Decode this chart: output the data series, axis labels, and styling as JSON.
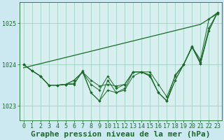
{
  "background_color": "#cce8f0",
  "plot_bg_color": "#d8eff0",
  "grid_color": "#99ccbb",
  "line_color": "#1a6b2a",
  "xlabel": "Graphe pression niveau de la mer (hPa)",
  "xlabel_fontsize": 8,
  "tick_fontsize": 6,
  "xlim": [
    -0.5,
    23.5
  ],
  "ylim": [
    1022.65,
    1025.5
  ],
  "yticks": [
    1023,
    1024,
    1025
  ],
  "xticks": [
    0,
    1,
    2,
    3,
    4,
    5,
    6,
    7,
    8,
    9,
    10,
    11,
    12,
    13,
    14,
    15,
    16,
    17,
    18,
    19,
    20,
    21,
    22,
    23
  ],
  "series": [
    [
      1024.0,
      1023.85,
      1023.72,
      1023.5,
      1023.5,
      1023.52,
      1023.55,
      1023.82,
      1023.52,
      1023.38,
      1023.72,
      1023.42,
      1023.52,
      1023.82,
      1023.82,
      1023.82,
      1023.52,
      1023.22,
      1023.72,
      1024.0,
      1024.42,
      1024.12,
      1025.1,
      1025.22
    ],
    [
      1024.0,
      1023.85,
      1023.72,
      1023.5,
      1023.5,
      1023.52,
      1023.62,
      1023.82,
      1023.62,
      1023.48,
      1023.52,
      1023.48,
      1023.52,
      1023.82,
      1023.82,
      1023.72,
      1023.32,
      1023.12,
      1023.62,
      1024.0,
      1024.42,
      1024.02,
      1024.82,
      1025.25
    ],
    [
      1024.0,
      1023.85,
      1023.72,
      1023.5,
      1023.5,
      1023.52,
      1023.62,
      1023.82,
      1023.32,
      1023.12,
      1023.38,
      1023.32,
      1023.38,
      1023.72,
      1023.82,
      1023.72,
      1023.32,
      1023.12,
      1023.62,
      1024.0,
      1024.42,
      1024.02,
      1024.82,
      1025.25
    ],
    [
      1024.0,
      1023.85,
      1023.72,
      1023.5,
      1023.5,
      1023.52,
      1023.52,
      1023.85,
      1023.32,
      1023.12,
      1023.62,
      1023.32,
      1023.42,
      1023.82,
      1023.82,
      1023.75,
      1023.32,
      1023.12,
      1023.75,
      1024.0,
      1024.45,
      1024.05,
      1024.88,
      1025.25
    ]
  ],
  "trend_line": [
    1023.92,
    1023.97,
    1024.02,
    1024.07,
    1024.12,
    1024.17,
    1024.22,
    1024.27,
    1024.32,
    1024.37,
    1024.42,
    1024.47,
    1024.52,
    1024.57,
    1024.62,
    1024.67,
    1024.72,
    1024.77,
    1024.82,
    1024.87,
    1024.92,
    1024.97,
    1025.1,
    1025.25
  ]
}
